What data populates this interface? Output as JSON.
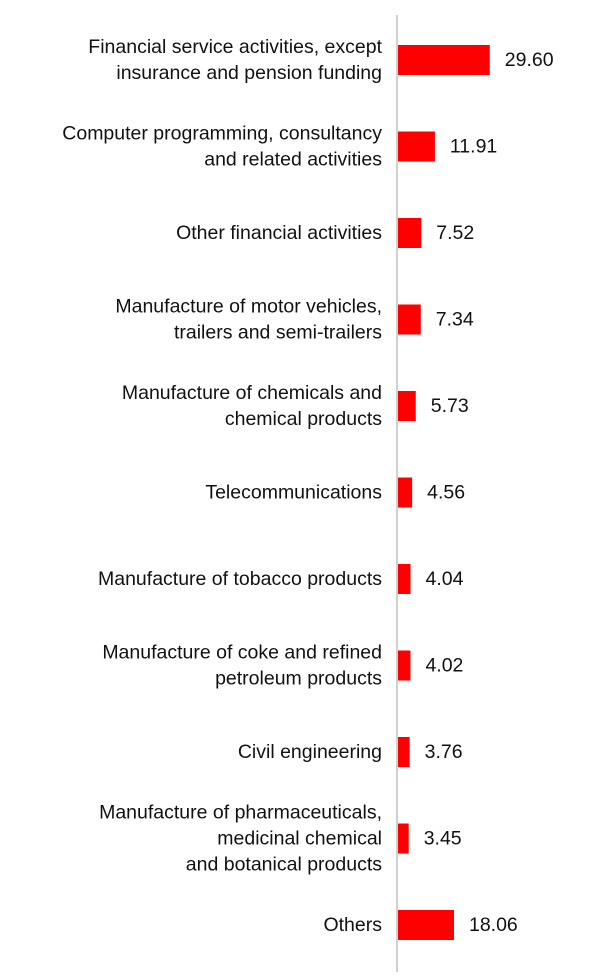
{
  "chart_data": {
    "type": "bar",
    "orientation": "horizontal",
    "categories": [
      "Financial service activities, except insurance and pension funding",
      "Computer programming, consultancy and related activities",
      "Other financial activities",
      "Manufacture of motor vehicles, trailers and semi-trailers",
      "Manufacture of chemicals and chemical products",
      "Telecommunications",
      "Manufacture of tobacco products",
      "Manufacture of coke and refined petroleum products",
      "Civil engineering",
      "Manufacture of pharmaceuticals, medicinal chemical and botanical products",
      "Others"
    ],
    "category_label_lines": [
      [
        "Financial service activities, except",
        "insurance and pension funding"
      ],
      [
        "Computer programming, consultancy",
        "and related activities"
      ],
      [
        "Other financial activities"
      ],
      [
        "Manufacture of motor vehicles,",
        "trailers and semi-trailers"
      ],
      [
        "Manufacture of chemicals and",
        "chemical products"
      ],
      [
        "Telecommunications"
      ],
      [
        "Manufacture of tobacco products"
      ],
      [
        "Manufacture of coke and refined",
        "petroleum products"
      ],
      [
        "Civil engineering"
      ],
      [
        "Manufacture of pharmaceuticals,",
        "medicinal chemical",
        "and botanical products"
      ],
      [
        "Others"
      ]
    ],
    "values": [
      29.6,
      11.91,
      7.52,
      7.34,
      5.73,
      4.56,
      4.04,
      4.02,
      3.76,
      3.45,
      18.06
    ],
    "value_labels": [
      "29.60",
      "11.91",
      "7.52",
      "7.34",
      "5.73",
      "4.56",
      "4.04",
      "4.02",
      "3.76",
      "3.45",
      "18.06"
    ],
    "bar_color": "#ff0000",
    "title": "",
    "xlabel": "",
    "ylabel": "",
    "xlim": [
      0,
      30
    ],
    "grid": false,
    "legend": "none"
  }
}
